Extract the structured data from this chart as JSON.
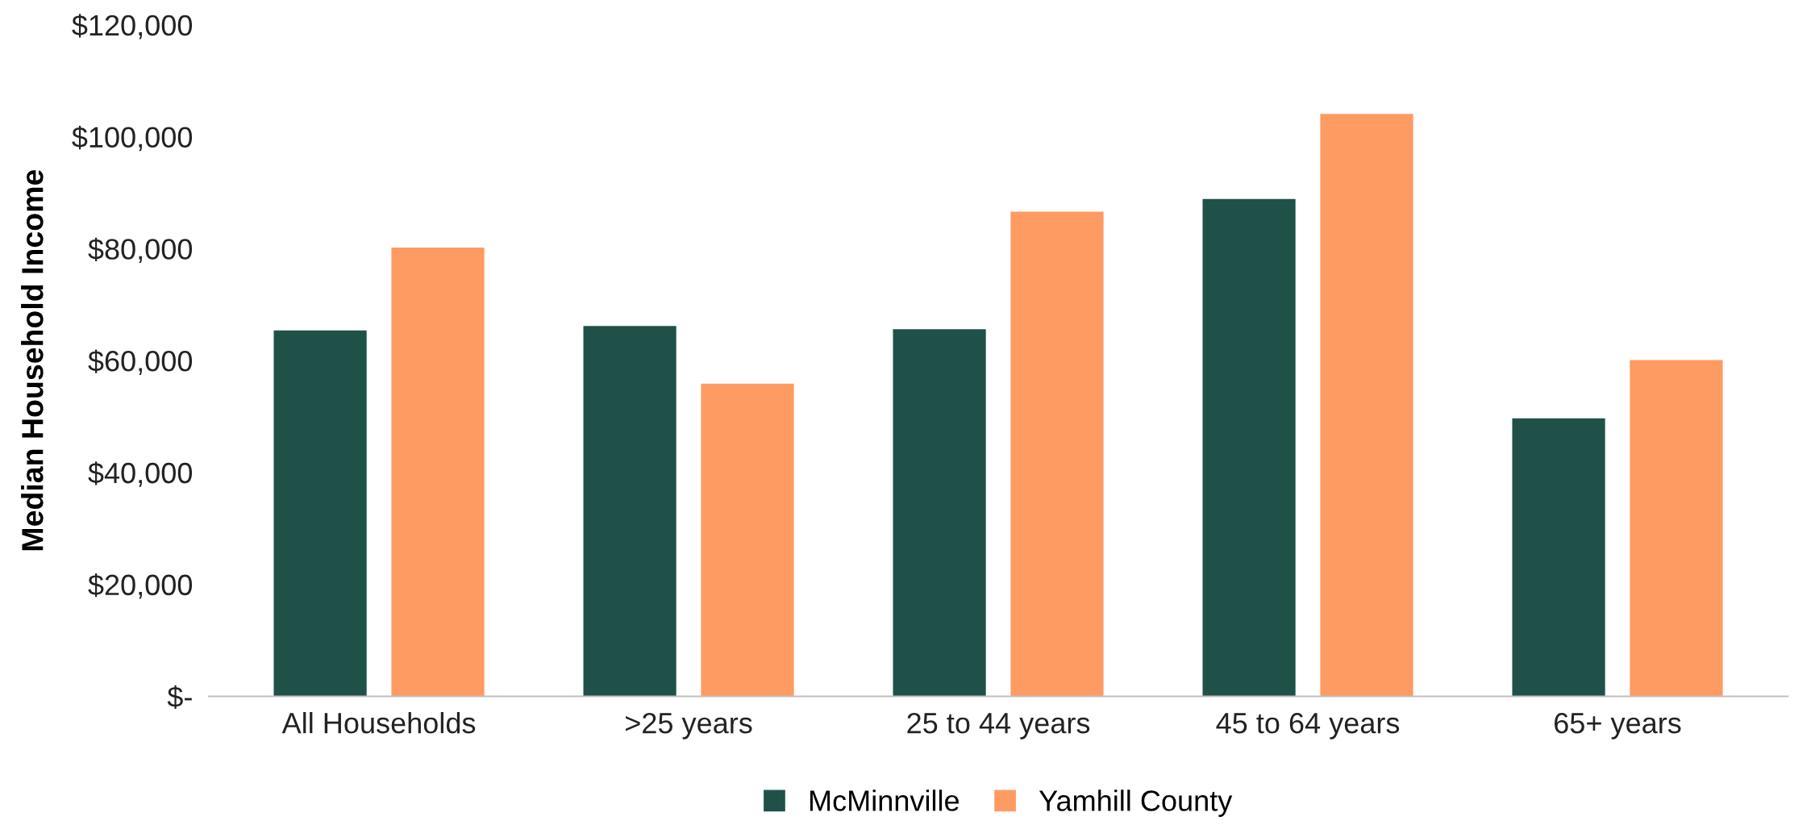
{
  "chart_data": {
    "type": "bar",
    "ylabel": "Median Household Income",
    "categories": [
      "All Households",
      ">25 years",
      "25 to 44 years",
      "45 to 64 years",
      "65+ years"
    ],
    "series": [
      {
        "name": "McMinnville",
        "color": "#1f5149",
        "values": [
          65400,
          66200,
          65600,
          88900,
          49700
        ]
      },
      {
        "name": "Yamhill County",
        "color": "#fd9b63",
        "values": [
          80200,
          55900,
          86600,
          104100,
          60100
        ]
      }
    ],
    "ylim": [
      0,
      120000
    ],
    "yticks": [
      {
        "value": 0,
        "label": "$-"
      },
      {
        "value": 20000,
        "label": "$20,000"
      },
      {
        "value": 40000,
        "label": "$40,000"
      },
      {
        "value": 60000,
        "label": "$60,000"
      },
      {
        "value": 80000,
        "label": "$80,000"
      },
      {
        "value": 100000,
        "label": "$100,000"
      },
      {
        "value": 120000,
        "label": "$120,000"
      }
    ],
    "grid": false,
    "legend": "bottom"
  }
}
